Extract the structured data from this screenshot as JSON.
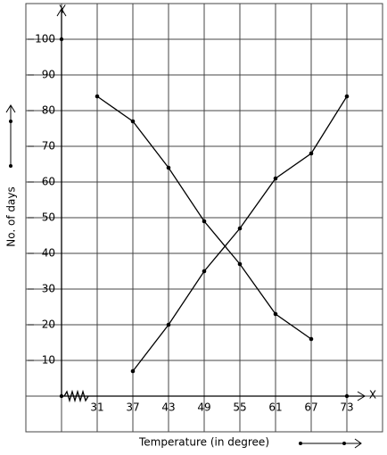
{
  "chart_data": {
    "type": "line",
    "x_label": "Temperature (in degree)",
    "y_label": "No. of days",
    "x_axis_name": "X",
    "y_axis_name": "Y",
    "x": [
      31,
      37,
      43,
      49,
      55,
      61,
      67,
      73
    ],
    "series": [
      {
        "color": "#000000",
        "values": [
          84,
          77,
          64,
          49,
          37,
          23,
          16,
          null
        ]
      },
      {
        "color": "#000000",
        "values": [
          null,
          7,
          20,
          35,
          47,
          61,
          68,
          84
        ]
      }
    ],
    "xlim": [
      25,
      73
    ],
    "xticks": [
      31,
      37,
      43,
      49,
      55,
      61,
      67,
      73
    ],
    "ylim": [
      0,
      100
    ],
    "yticks": [
      10,
      20,
      30,
      40,
      50,
      60,
      70,
      80,
      90,
      100
    ],
    "grid": true
  }
}
